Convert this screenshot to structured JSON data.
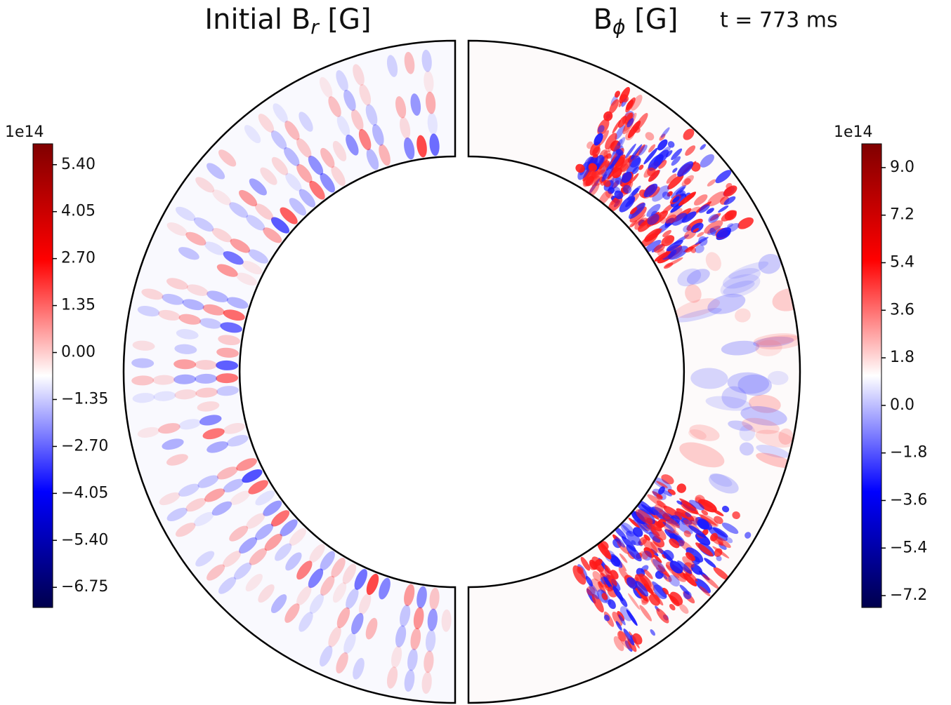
{
  "chart_data": [
    {
      "type": "polar-heatmap",
      "title": [
        "Initial B",
        "r",
        " [G]"
      ],
      "side": "left",
      "colormap": [
        "#00004c",
        "#0000ff",
        "#ffffff",
        "#ff0000",
        "#800000"
      ],
      "colorbar": {
        "offset_label": "1e14",
        "clim": [
          -7.33,
          6.0
        ],
        "ticks": [
          {
            "value": 5.4,
            "label": "5.40"
          },
          {
            "value": 4.05,
            "label": "4.05"
          },
          {
            "value": 2.7,
            "label": "2.70"
          },
          {
            "value": 1.35,
            "label": "1.35"
          },
          {
            "value": 0,
            "label": "0.00"
          },
          {
            "value": -1.35,
            "label": "−1.35"
          },
          {
            "value": -2.7,
            "label": "−2.70"
          },
          {
            "value": -4.05,
            "label": "−4.05"
          },
          {
            "value": -5.4,
            "label": "−5.40"
          },
          {
            "value": -6.75,
            "label": "−6.75"
          }
        ]
      }
    },
    {
      "type": "polar-heatmap",
      "title": [
        "B",
        "ϕ",
        " [G]"
      ],
      "annotation": "t = 773 ms",
      "side": "right",
      "colormap": [
        "#00004c",
        "#0000ff",
        "#ffffff",
        "#ff0000",
        "#800000"
      ],
      "colorbar": {
        "offset_label": "1e14",
        "clim": [
          -7.65,
          9.9
        ],
        "ticks": [
          {
            "value": 9,
            "label": "9.0"
          },
          {
            "value": 7.2,
            "label": "7.2"
          },
          {
            "value": 5.4,
            "label": "5.4"
          },
          {
            "value": 3.6,
            "label": "3.6"
          },
          {
            "value": 1.8,
            "label": "1.8"
          },
          {
            "value": 0,
            "label": "0.0"
          },
          {
            "value": -1.8,
            "label": "−1.8"
          },
          {
            "value": -3.6,
            "label": "−3.6"
          },
          {
            "value": -5.4,
            "label": "−5.4"
          },
          {
            "value": -7.2,
            "label": "−7.2"
          }
        ]
      }
    }
  ]
}
